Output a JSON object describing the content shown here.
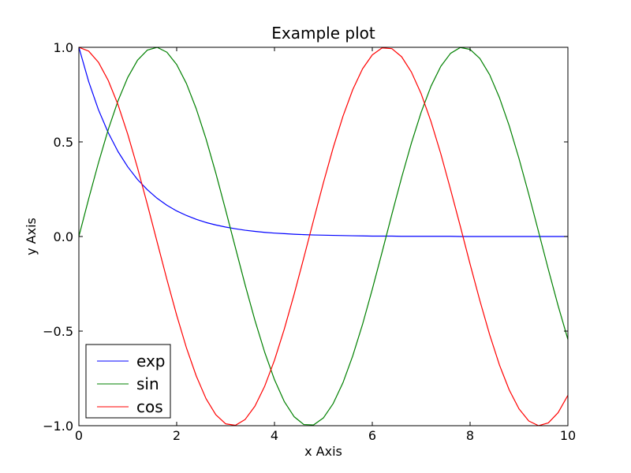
{
  "chart_data": {
    "type": "line",
    "title": "Example plot",
    "xlabel": "x Axis",
    "ylabel": "y Axis",
    "xlim": [
      0,
      10
    ],
    "ylim": [
      -1.0,
      1.0
    ],
    "xticks": [
      0,
      2,
      4,
      6,
      8,
      10
    ],
    "xtick_labels": [
      "0",
      "2",
      "4",
      "6",
      "8",
      "10"
    ],
    "yticks": [
      -1.0,
      -0.5,
      0.0,
      0.5,
      1.0
    ],
    "ytick_labels": [
      "−1.0",
      "−0.5",
      "0.0",
      "0.5",
      "1.0"
    ],
    "grid": false,
    "legend": {
      "position": "lower-left"
    },
    "series": [
      {
        "name": "exp",
        "color": "#0000ff",
        "x": [
          0,
          0.2,
          0.4,
          0.6,
          0.8,
          1.0,
          1.2,
          1.4,
          1.6,
          1.8,
          2.0,
          2.2,
          2.4,
          2.6,
          2.8,
          3.0,
          3.2,
          3.4,
          3.6,
          3.8,
          4.0,
          4.2,
          4.4,
          4.6,
          4.8,
          5.0,
          5.2,
          5.4,
          5.6,
          5.8,
          6.0,
          6.2,
          6.4,
          6.6,
          6.8,
          7.0,
          7.2,
          7.4,
          7.6,
          7.8,
          8.0,
          8.2,
          8.4,
          8.6,
          8.8,
          9.0,
          9.2,
          9.4,
          9.6,
          9.8,
          10.0
        ],
        "y": [
          1.0,
          0.819,
          0.67,
          0.549,
          0.449,
          0.368,
          0.301,
          0.247,
          0.202,
          0.165,
          0.135,
          0.111,
          0.091,
          0.074,
          0.061,
          0.05,
          0.041,
          0.033,
          0.027,
          0.022,
          0.018,
          0.015,
          0.012,
          0.01,
          0.008,
          0.007,
          0.006,
          0.005,
          0.004,
          0.003,
          0.002,
          0.002,
          0.002,
          0.001,
          0.001,
          0.001,
          0.001,
          0.001,
          0.001,
          0.0,
          0.0,
          0.0,
          0.0,
          0.0,
          0.0,
          0.0,
          0.0,
          0.0,
          0.0,
          0.0,
          0.0
        ]
      },
      {
        "name": "sin",
        "color": "#008000",
        "x": [
          0,
          0.2,
          0.4,
          0.6,
          0.8,
          1.0,
          1.2,
          1.4,
          1.6,
          1.8,
          2.0,
          2.2,
          2.4,
          2.6,
          2.8,
          3.0,
          3.2,
          3.4,
          3.6,
          3.8,
          4.0,
          4.2,
          4.4,
          4.6,
          4.8,
          5.0,
          5.2,
          5.4,
          5.6,
          5.8,
          6.0,
          6.2,
          6.4,
          6.6,
          6.8,
          7.0,
          7.2,
          7.4,
          7.6,
          7.8,
          8.0,
          8.2,
          8.4,
          8.6,
          8.8,
          9.0,
          9.2,
          9.4,
          9.6,
          9.8,
          10.0
        ],
        "y": [
          0.0,
          0.199,
          0.389,
          0.565,
          0.717,
          0.841,
          0.932,
          0.985,
          1.0,
          0.974,
          0.909,
          0.808,
          0.675,
          0.516,
          0.335,
          0.141,
          -0.058,
          -0.256,
          -0.443,
          -0.612,
          -0.757,
          -0.872,
          -0.952,
          -0.994,
          -0.996,
          -0.959,
          -0.883,
          -0.773,
          -0.631,
          -0.465,
          -0.279,
          -0.083,
          0.117,
          0.312,
          0.494,
          0.657,
          0.794,
          0.899,
          0.968,
          0.999,
          0.989,
          0.941,
          0.855,
          0.734,
          0.585,
          0.412,
          0.223,
          0.025,
          -0.174,
          -0.366,
          -0.544
        ]
      },
      {
        "name": "cos",
        "color": "#ff0000",
        "x": [
          0,
          0.2,
          0.4,
          0.6,
          0.8,
          1.0,
          1.2,
          1.4,
          1.6,
          1.8,
          2.0,
          2.2,
          2.4,
          2.6,
          2.8,
          3.0,
          3.2,
          3.4,
          3.6,
          3.8,
          4.0,
          4.2,
          4.4,
          4.6,
          4.8,
          5.0,
          5.2,
          5.4,
          5.6,
          5.8,
          6.0,
          6.2,
          6.4,
          6.6,
          6.8,
          7.0,
          7.2,
          7.4,
          7.6,
          7.8,
          8.0,
          8.2,
          8.4,
          8.6,
          8.8,
          9.0,
          9.2,
          9.4,
          9.6,
          9.8,
          10.0
        ],
        "y": [
          1.0,
          0.98,
          0.921,
          0.825,
          0.697,
          0.54,
          0.362,
          0.17,
          -0.029,
          -0.227,
          -0.416,
          -0.589,
          -0.737,
          -0.857,
          -0.942,
          -0.99,
          -0.998,
          -0.967,
          -0.897,
          -0.791,
          -0.654,
          -0.49,
          -0.307,
          -0.112,
          0.087,
          0.284,
          0.469,
          0.635,
          0.776,
          0.886,
          0.96,
          0.997,
          0.993,
          0.95,
          0.869,
          0.754,
          0.608,
          0.438,
          0.249,
          0.054,
          -0.146,
          -0.339,
          -0.519,
          -0.679,
          -0.811,
          -0.911,
          -0.975,
          -1.0,
          -0.985,
          -0.931,
          -0.839
        ]
      }
    ]
  }
}
